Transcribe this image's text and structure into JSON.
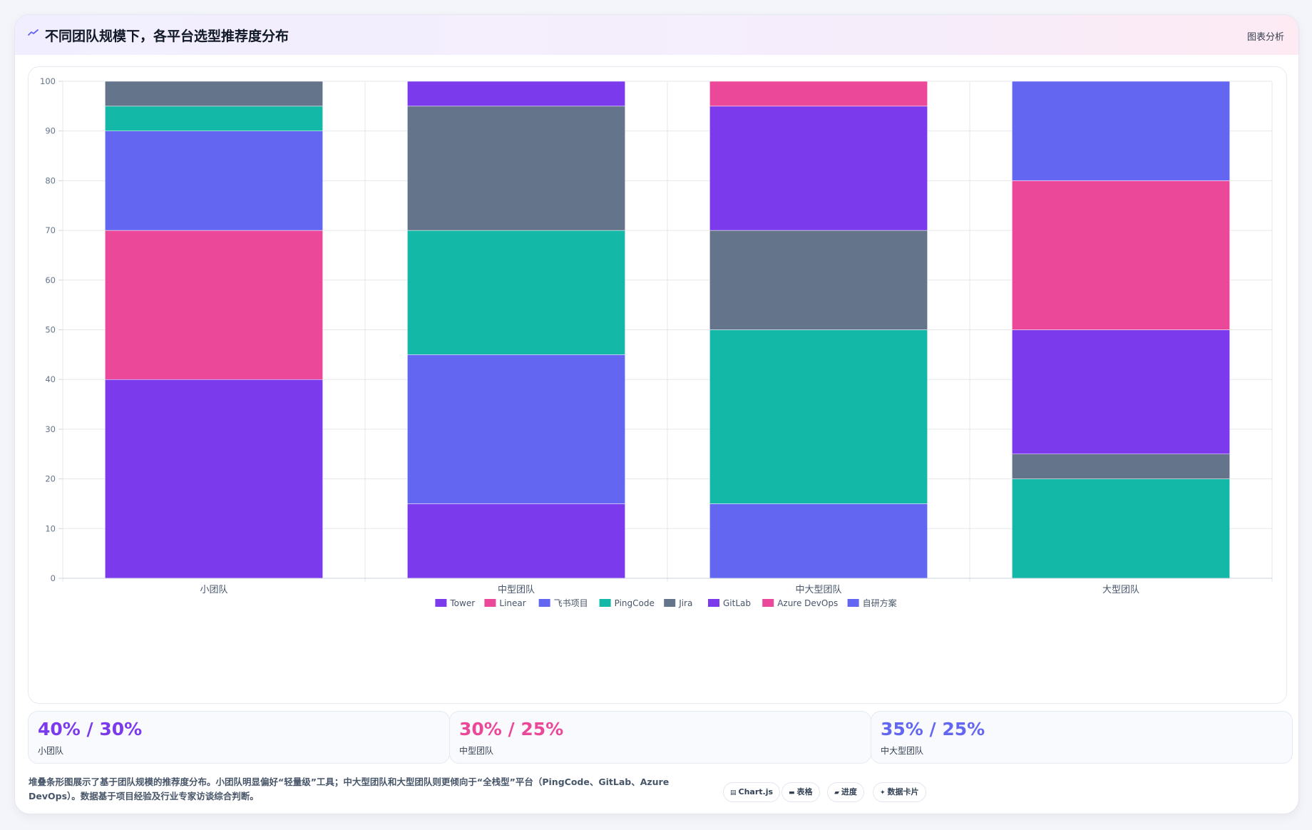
{
  "header": {
    "title": "不同团队规模下，各平台选型推荐度分布",
    "tag": "图表分析"
  },
  "chart_data": {
    "type": "bar",
    "stacked": true,
    "title": "",
    "xlabel": "",
    "ylabel": "",
    "ylim": [
      0,
      100
    ],
    "yticks": [
      0,
      10,
      20,
      30,
      40,
      50,
      60,
      70,
      80,
      90,
      100
    ],
    "categories": [
      "小团队",
      "中型团队",
      "中大型团队",
      "大型团队"
    ],
    "grid": true,
    "legend_position": "bottom",
    "series": [
      {
        "name": "Tower",
        "color": "#7c3aed",
        "values": [
          40,
          15,
          0,
          0
        ]
      },
      {
        "name": "Linear",
        "color": "#ec4899",
        "values": [
          30,
          0,
          0,
          0
        ]
      },
      {
        "name": "飞书项目",
        "color": "#6366f1",
        "values": [
          20,
          30,
          15,
          0
        ]
      },
      {
        "name": "PingCode",
        "color": "#14b8a6",
        "values": [
          5,
          25,
          35,
          20
        ]
      },
      {
        "name": "Jira",
        "color": "#64748b",
        "values": [
          5,
          25,
          20,
          5
        ]
      },
      {
        "name": "GitLab",
        "color": "#7c3aed",
        "values": [
          0,
          5,
          25,
          25
        ]
      },
      {
        "name": "Azure DevOps",
        "color": "#ec4899",
        "values": [
          0,
          0,
          5,
          30
        ]
      },
      {
        "name": "自研方案",
        "color": "#6366f1",
        "values": [
          0,
          0,
          0,
          20
        ]
      }
    ]
  },
  "stats": [
    {
      "value": "40% / 30%",
      "label": "小团队",
      "color": "#7c3aed"
    },
    {
      "value": "30% / 25%",
      "label": "中型团队",
      "color": "#ec4899"
    },
    {
      "value": "35% / 25%",
      "label": "中大型团队",
      "color": "#6366f1"
    }
  ],
  "note": "堆叠条形图展示了基于团队规模的推荐度分布。小团队明显偏好“轻量级”工具；中大型团队和大型团队则更倾向于“全栈型”平台（PingCode、GitLab、Azure DevOps）。数据基于项目经验及行业专家访谈综合判断。",
  "chips": [
    {
      "icon": "chart-icon",
      "label": "Chart.js"
    },
    {
      "icon": "table-icon",
      "label": "表格"
    },
    {
      "icon": "progress-icon",
      "label": "进度"
    },
    {
      "icon": "card-icon",
      "label": "数据卡片"
    }
  ]
}
